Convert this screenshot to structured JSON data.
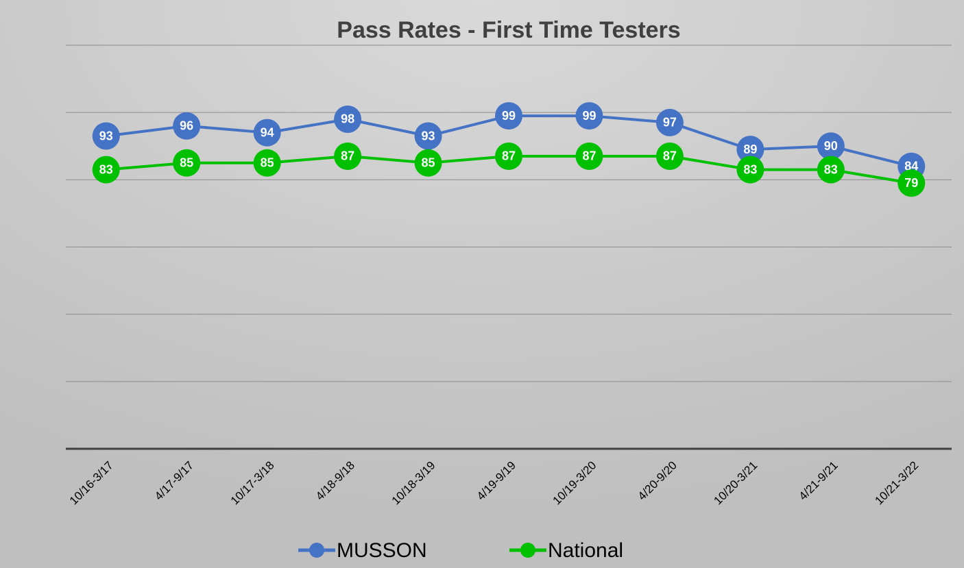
{
  "chart_data": {
    "type": "line",
    "title": "Pass Rates - First Time Testers",
    "categories": [
      "10/16-3/17",
      "4/17-9/17",
      "10/17-3/18",
      "4/18-9/18",
      "10/18-3/19",
      "4/19-9/19",
      "10/19-3/20",
      "4/20-9/20",
      "10/20-3/21",
      "4/21-9/21",
      "10/21-3/22"
    ],
    "series": [
      {
        "name": "MUSSON",
        "color": "#4472c4",
        "values": [
          93,
          96,
          94,
          98,
          93,
          99,
          99,
          97,
          89,
          90,
          84
        ]
      },
      {
        "name": "National",
        "color": "#00c000",
        "values": [
          83,
          85,
          85,
          87,
          85,
          87,
          87,
          87,
          83,
          83,
          79
        ]
      }
    ],
    "ylim": [
      0,
      120
    ],
    "yticks": [
      0,
      20,
      40,
      60,
      80,
      100,
      120
    ],
    "grid": true,
    "legend": "bottom"
  }
}
